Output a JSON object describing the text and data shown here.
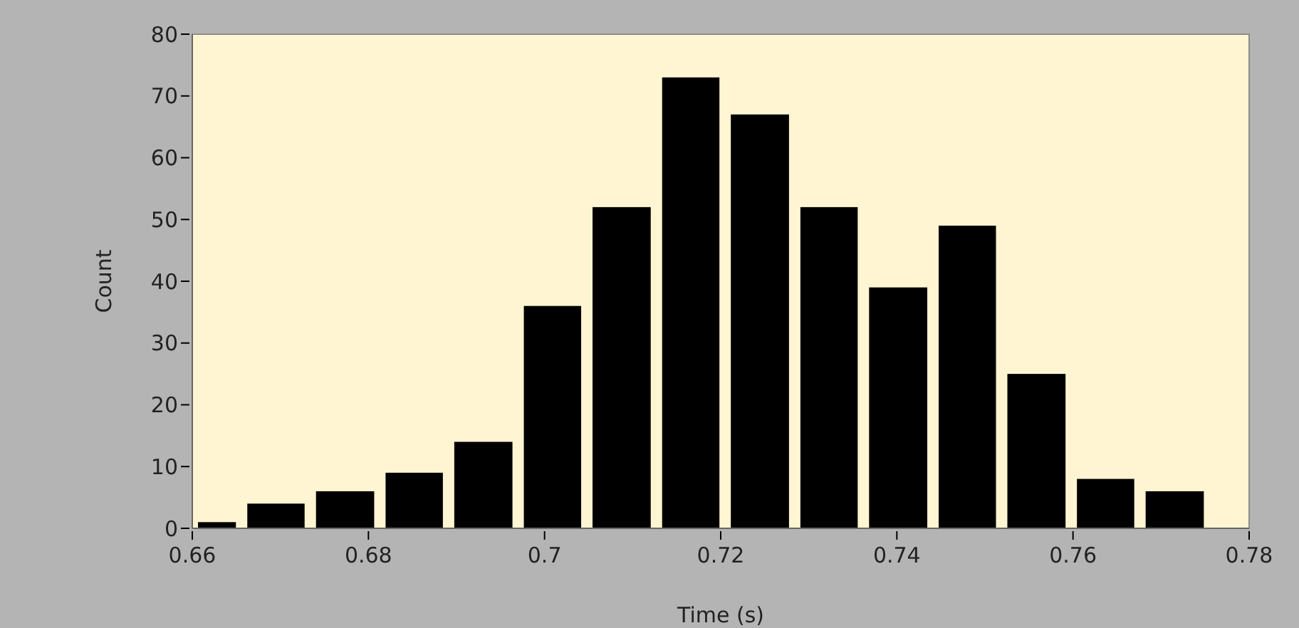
{
  "chart_data": {
    "type": "histogram",
    "xlabel": "Time (s)",
    "ylabel": "Count",
    "bins": [
      0.66,
      0.6656,
      0.6734,
      0.6813,
      0.6891,
      0.697,
      0.7048,
      0.7127,
      0.7205,
      0.7284,
      0.7362,
      0.7441,
      0.7519,
      0.7598,
      0.7676,
      0.7755
    ],
    "values": [
      1,
      4,
      6,
      9,
      14,
      36,
      52,
      73,
      67,
      52,
      39,
      49,
      25,
      8,
      6
    ],
    "color": "#000000",
    "xlim": [
      0.66,
      0.78
    ],
    "xticks": [
      0.66,
      0.68,
      0.7,
      0.72,
      0.74,
      0.76,
      0.78
    ],
    "ylim": [
      0,
      80
    ],
    "yticks": [
      0,
      10,
      20,
      30,
      40,
      50,
      60,
      70,
      80
    ],
    "grid": false
  }
}
